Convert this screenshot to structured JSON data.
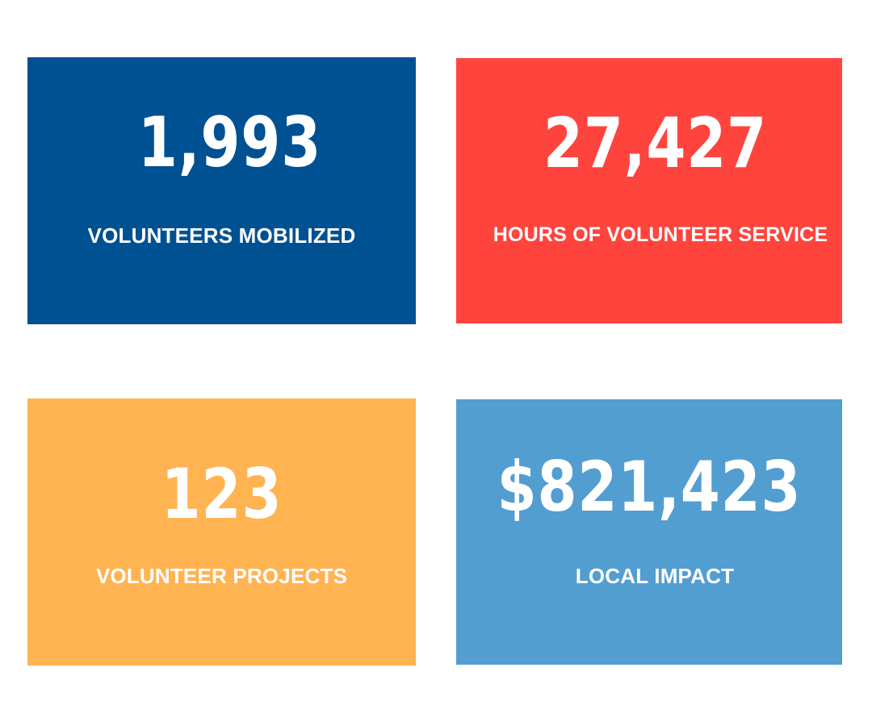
{
  "stats": [
    {
      "id": "volunteers",
      "value": "1,993",
      "label": "VOLUNTEERS MOBILIZED",
      "color": "#005192"
    },
    {
      "id": "hours",
      "value": "27,427",
      "label": "HOURS OF VOLUNTEER SERVICE",
      "color": "#FF443D"
    },
    {
      "id": "projects",
      "value": "123",
      "label": "VOLUNTEER PROJECTS",
      "color": "#FFB351"
    },
    {
      "id": "impact",
      "value": "$821,423",
      "label": "LOCAL IMPACT",
      "color": "#529ED1"
    }
  ]
}
